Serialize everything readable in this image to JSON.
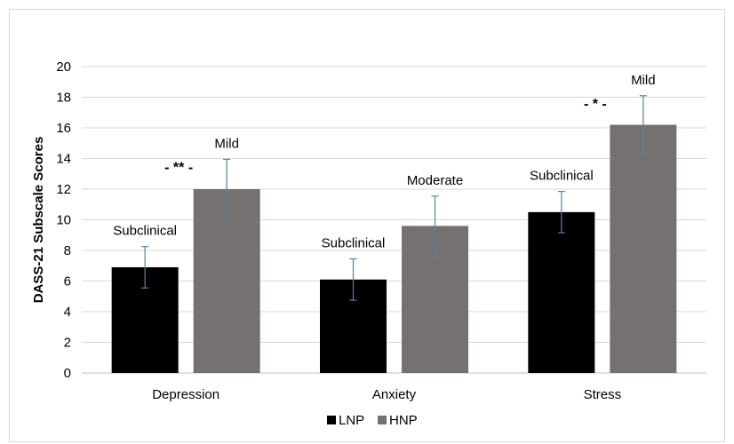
{
  "chart_data": {
    "type": "bar",
    "title": "",
    "xlabel": "",
    "ylabel": "DASS-21 Subscale Scores",
    "ylim": [
      0,
      20
    ],
    "yticks": [
      0,
      2,
      4,
      6,
      8,
      10,
      12,
      14,
      16,
      18,
      20
    ],
    "grid": true,
    "legend_position": "bottom",
    "categories": [
      "Depression",
      "Anxiety",
      "Stress"
    ],
    "series": [
      {
        "name": "LNP",
        "color": "#000000",
        "values": [
          6.9,
          6.1,
          10.5
        ],
        "error": [
          1.35,
          1.35,
          1.35
        ],
        "labels": [
          "Subclinical",
          "Subclinical",
          "Subclinical"
        ]
      },
      {
        "name": "HNP",
        "color": "#767171",
        "values": [
          12.0,
          9.6,
          16.2
        ],
        "error": [
          1.95,
          1.95,
          1.9
        ],
        "labels": [
          "Mild",
          "Moderate",
          "Mild"
        ]
      }
    ],
    "error_bar_color": "#5b7fa6",
    "significance": [
      {
        "category_index": 0,
        "text": "- ** -"
      },
      {
        "category_index": 2,
        "text": "- * -"
      }
    ]
  }
}
